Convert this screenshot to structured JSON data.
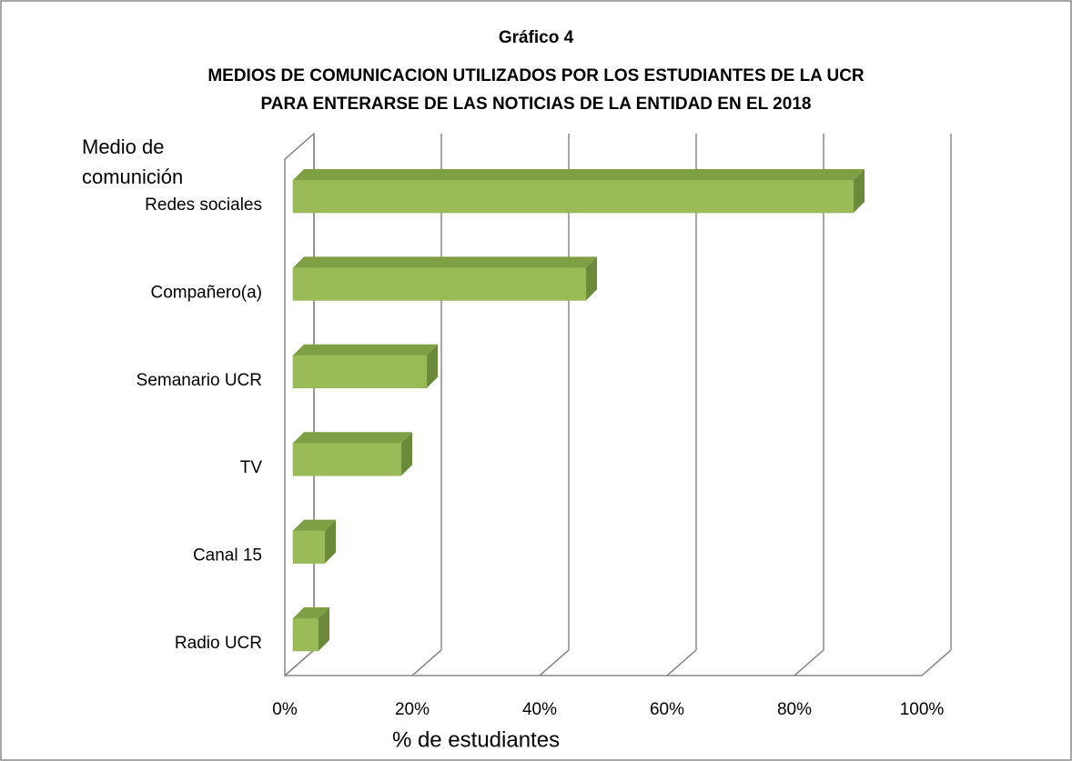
{
  "chart_data": {
    "type": "bar3d_horizontal",
    "title": [
      "Gráfico 4",
      "MEDIOS DE COMUNICACION UTILIZADOS POR LOS ESTUDIANTES DE LA UCR",
      "PARA ENTERARSE DE LAS NOTICIAS DE LA ENTIDAD EN EL 2018"
    ],
    "ylabel": [
      "Medio de",
      "comunición"
    ],
    "xlabel": "% de estudiantes",
    "categories": [
      "Redes sociales",
      "Compañero(a)",
      "Semanario UCR",
      "TV",
      "Canal 15",
      "Radio UCR"
    ],
    "values": [
      88,
      46,
      21,
      17,
      5,
      4
    ],
    "color": "#9bbb59",
    "xlim": [
      0,
      100
    ],
    "xticks": [
      {
        "value": 0,
        "label": "0%"
      },
      {
        "value": 20,
        "label": "20%"
      },
      {
        "value": 40,
        "label": "40%"
      },
      {
        "value": 60,
        "label": "60%"
      },
      {
        "value": 80,
        "label": "80%"
      },
      {
        "value": 100,
        "label": "100%"
      }
    ],
    "grid": true
  }
}
